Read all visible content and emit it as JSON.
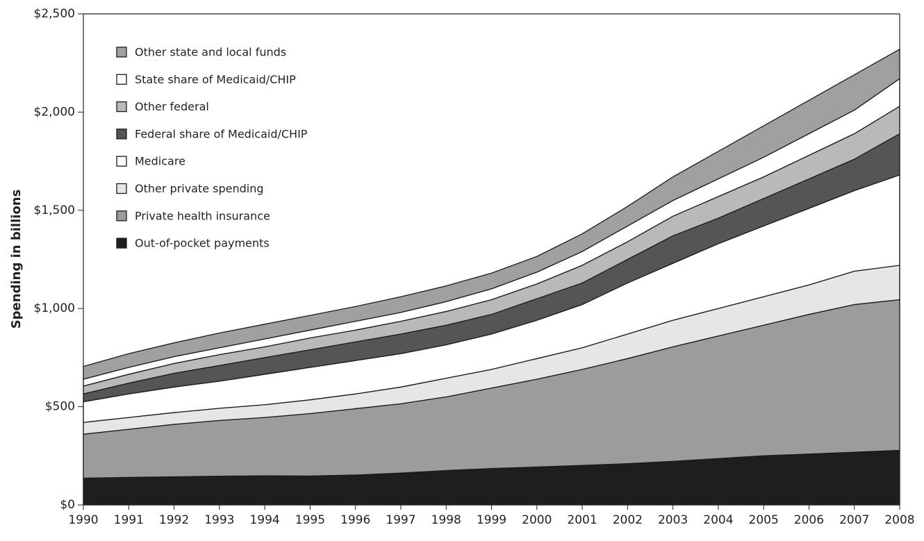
{
  "chart_data": {
    "type": "stacked-area",
    "y_label": "Spending in billions",
    "categories": [
      "1990",
      "1991",
      "1992",
      "1993",
      "1994",
      "1995",
      "1996",
      "1997",
      "1998",
      "1999",
      "2000",
      "2001",
      "2002",
      "2003",
      "2004",
      "2005",
      "2006",
      "2007",
      "2008"
    ],
    "ylim": [
      0,
      2500
    ],
    "yticks": [
      {
        "value": 0,
        "label": "$0"
      },
      {
        "value": 500,
        "label": "$500"
      },
      {
        "value": 1000,
        "label": "$1,000"
      },
      {
        "value": 1500,
        "label": "$1,500"
      },
      {
        "value": 2000,
        "label": "$2,000"
      },
      {
        "value": 2500,
        "label": "$2,500"
      }
    ],
    "legend": "top-left",
    "series": [
      {
        "name": "Out-of-pocket payments",
        "color": "#1e1e1e",
        "values": [
          136,
          140,
          143,
          146,
          148,
          147,
          152,
          162,
          175,
          185,
          193,
          201,
          210,
          222,
          236,
          250,
          259,
          268,
          278
        ]
      },
      {
        "name": "Private health insurance",
        "color": "#9c9c9c",
        "values": [
          224,
          245,
          267,
          284,
          297,
          318,
          338,
          353,
          375,
          410,
          447,
          489,
          535,
          583,
          624,
          665,
          711,
          752,
          767
        ]
      },
      {
        "name": "Other private spending",
        "color": "#e6e6e6",
        "values": [
          60,
          60,
          60,
          62,
          65,
          70,
          75,
          85,
          95,
          95,
          105,
          110,
          125,
          135,
          140,
          145,
          150,
          170,
          175
        ]
      },
      {
        "name": "Medicare",
        "color": "#ffffff",
        "values": [
          105,
          120,
          130,
          138,
          155,
          165,
          170,
          170,
          170,
          180,
          195,
          220,
          260,
          290,
          330,
          360,
          390,
          410,
          460
        ]
      },
      {
        "name": "Federal share of Medicaid/CHIP",
        "color": "#555555",
        "values": [
          40,
          55,
          70,
          80,
          85,
          90,
          95,
          100,
          100,
          100,
          110,
          110,
          120,
          140,
          130,
          140,
          150,
          160,
          210
        ]
      },
      {
        "name": "Other federal",
        "color": "#b9b9b9",
        "values": [
          40,
          45,
          50,
          55,
          55,
          60,
          60,
          65,
          70,
          75,
          75,
          90,
          90,
          100,
          110,
          110,
          120,
          130,
          140
        ]
      },
      {
        "name": "State share of Medicaid/CHIP",
        "color": "#ffffff",
        "values": [
          35,
          35,
          35,
          35,
          40,
          40,
          45,
          45,
          50,
          55,
          60,
          70,
          80,
          80,
          90,
          100,
          110,
          120,
          140
        ]
      },
      {
        "name": "Other state and local funds",
        "color": "#a0a0a0",
        "values": [
          65,
          70,
          70,
          75,
          75,
          75,
          75,
          80,
          80,
          80,
          80,
          90,
          100,
          120,
          140,
          160,
          170,
          180,
          150
        ]
      }
    ]
  }
}
